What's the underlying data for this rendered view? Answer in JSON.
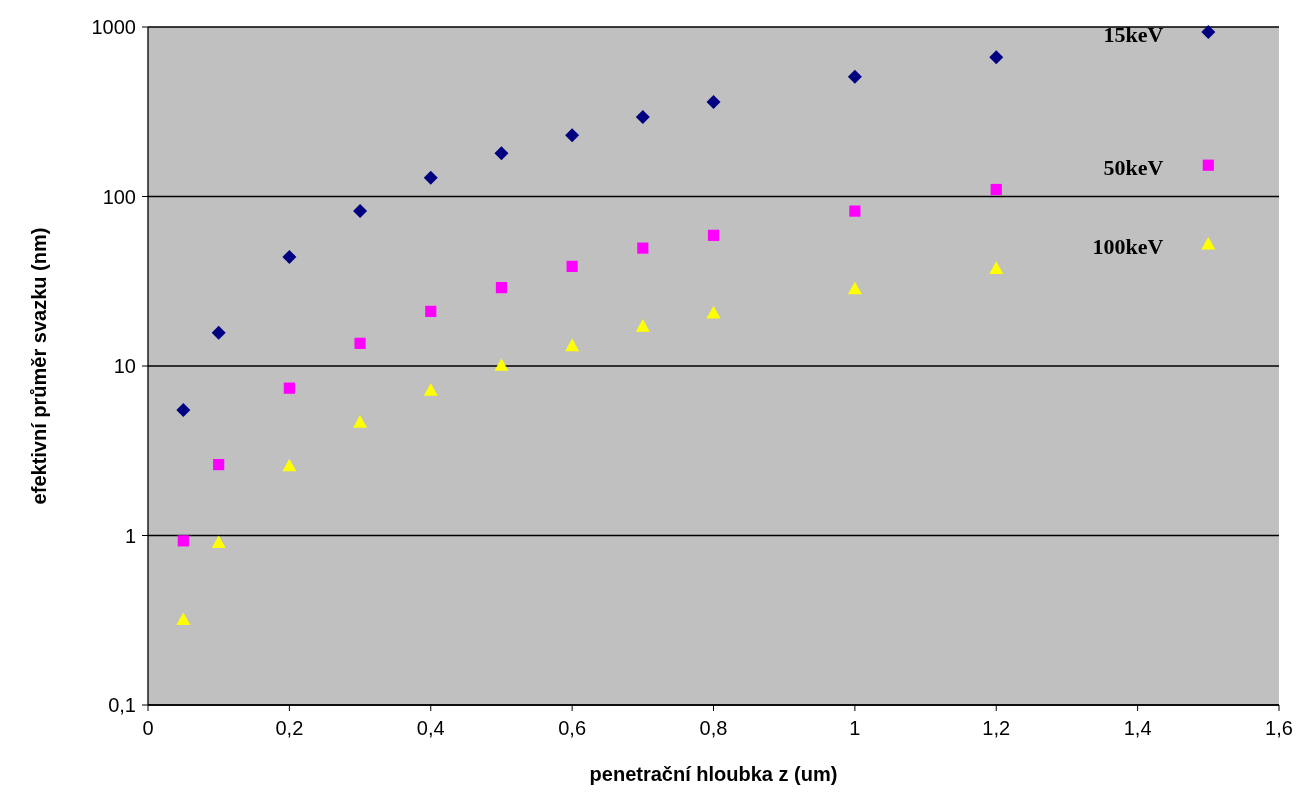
{
  "chart_data": {
    "type": "scatter",
    "xlabel": "penetrační hloubka z (um)",
    "ylabel": "efektivní průměr svazku (nm)",
    "x": [
      0.05,
      0.1,
      0.2,
      0.3,
      0.4,
      0.5,
      0.6,
      0.7,
      0.8,
      1.0,
      1.2,
      1.5
    ],
    "series": [
      {
        "name": "15keV",
        "color": "#000080",
        "marker": "diamond",
        "values": [
          5.5,
          15.7,
          44,
          82,
          129,
          180,
          230,
          294,
          361,
          509,
          662,
          933
        ]
      },
      {
        "name": "50keV",
        "color": "#ff00ff",
        "marker": "square",
        "values": [
          0.93,
          2.62,
          7.4,
          13.6,
          21,
          29,
          38.7,
          49.6,
          59,
          82,
          110,
          153
        ]
      },
      {
        "name": "100keV",
        "color": "#ffff00",
        "marker": "triangle",
        "values": [
          0.32,
          0.91,
          2.58,
          4.67,
          7.2,
          10.1,
          13.2,
          17.2,
          20.6,
          28.6,
          37.7,
          52.5
        ]
      }
    ],
    "log": "y",
    "grid": "y",
    "legend": false,
    "xlim": [
      0,
      1.6
    ],
    "xticks": [
      0,
      {
        "value": 0.2,
        "label": "0,2"
      },
      {
        "value": 0.4,
        "label": "0,4"
      },
      {
        "value": 0.6,
        "label": "0,6"
      },
      {
        "value": 0.8,
        "label": "0,8"
      },
      1,
      {
        "value": 1.2,
        "label": "1,2"
      },
      {
        "value": 1.4,
        "label": "1,4"
      },
      {
        "value": 1.6,
        "label": "1,6"
      }
    ],
    "ylim": [
      0.1,
      1000
    ],
    "yticks": [
      {
        "value": 0.1,
        "label": "0,1"
      },
      1,
      10,
      100,
      1000
    ]
  }
}
